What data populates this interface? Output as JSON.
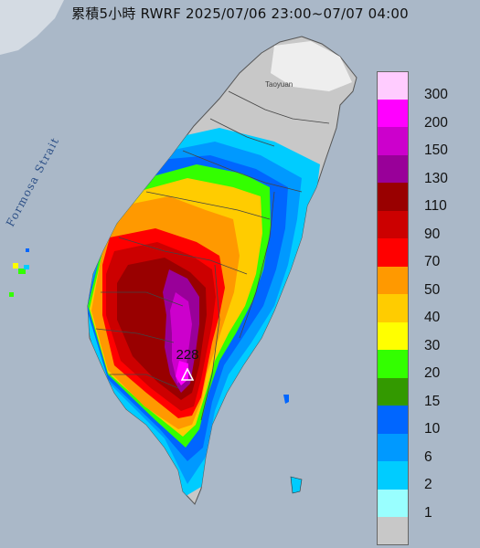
{
  "title": "累積5小時 RWRF 2025/07/06 23:00~07/07 04:00",
  "sea_label": "Formosa Strait",
  "city_label": "Taoyuan",
  "station": {
    "value": "228",
    "marker": "triangle-marker-icon"
  },
  "legend": [
    {
      "label": "300",
      "color": "#ffccff"
    },
    {
      "label": "200",
      "color": "#ff00ff"
    },
    {
      "label": "150",
      "color": "#cc00cc"
    },
    {
      "label": "130",
      "color": "#990099"
    },
    {
      "label": "110",
      "color": "#990000"
    },
    {
      "label": "90",
      "color": "#cc0000"
    },
    {
      "label": "70",
      "color": "#ff0000"
    },
    {
      "label": "50",
      "color": "#ff9900"
    },
    {
      "label": "40",
      "color": "#ffcc00"
    },
    {
      "label": "30",
      "color": "#ffff00"
    },
    {
      "label": "20",
      "color": "#33ff00"
    },
    {
      "label": "15",
      "color": "#339900"
    },
    {
      "label": "10",
      "color": "#0066ff"
    },
    {
      "label": "6",
      "color": "#0099ff"
    },
    {
      "label": "2",
      "color": "#00ccff"
    },
    {
      "label": "1",
      "color": "#99ffff"
    },
    {
      "label": "",
      "color": "#c8c8c8"
    }
  ]
}
